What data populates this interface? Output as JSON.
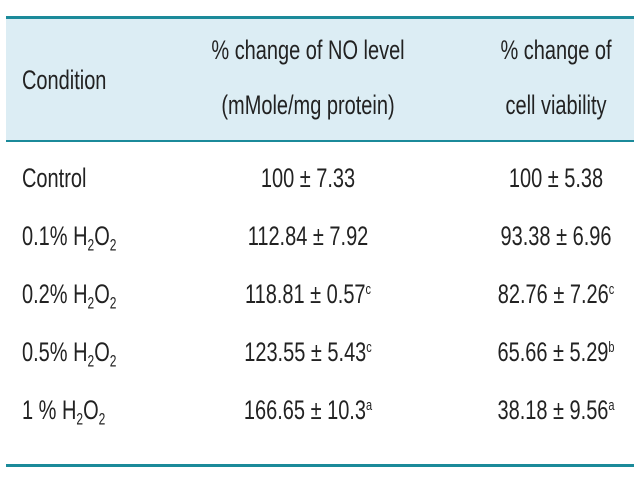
{
  "table": {
    "header": [
      "Condition",
      [
        "% change of NO level",
        "(mMole/mg protein)"
      ],
      [
        "% change of",
        "cell viability"
      ]
    ],
    "rows": [
      {
        "condition": [
          "Control"
        ],
        "no": {
          "text": "100 ± 7.33"
        },
        "viability": {
          "text": "100 ± 5.38"
        }
      },
      {
        "condition": [
          "0.1% H",
          "2",
          "O",
          "2"
        ],
        "no": {
          "text": "112.84 ± 7.92"
        },
        "viability": {
          "text": "93.38 ± 6.96"
        }
      },
      {
        "condition": [
          "0.2% H",
          "2",
          "O",
          "2"
        ],
        "no": {
          "text": "118.81 ± 0.57",
          "sup": "c"
        },
        "viability": {
          "text": "82.76 ± 7.26",
          "sup": "c"
        }
      },
      {
        "condition": [
          "0.5% H",
          "2",
          "O",
          "2"
        ],
        "no": {
          "text": "123.55 ± 5.43",
          "sup": "c"
        },
        "viability": {
          "text": "65.66 ± 5.29",
          "sup": "b"
        }
      },
      {
        "condition": [
          "1 % H",
          "2",
          "O",
          "2"
        ],
        "no": {
          "text": "166.65 ± 10.3",
          "sup": "a"
        },
        "viability": {
          "text": "38.18 ± 9.56",
          "sup": "a"
        }
      }
    ]
  }
}
